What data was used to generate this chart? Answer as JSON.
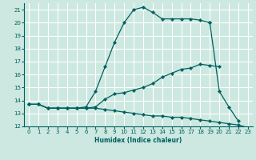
{
  "xlabel": "Humidex (Indice chaleur)",
  "bg_color": "#cce8e0",
  "grid_color": "#ffffff",
  "line_color": "#006060",
  "xlim": [
    -0.5,
    23.5
  ],
  "ylim": [
    12,
    21.5
  ],
  "xticks": [
    0,
    1,
    2,
    3,
    4,
    5,
    6,
    7,
    8,
    9,
    10,
    11,
    12,
    13,
    14,
    15,
    16,
    17,
    18,
    19,
    20,
    21,
    22,
    23
  ],
  "yticks": [
    12,
    13,
    14,
    15,
    16,
    17,
    18,
    19,
    20,
    21
  ],
  "series": [
    {
      "x": [
        0,
        1,
        2,
        3,
        4,
        5,
        6,
        7,
        8,
        9,
        10,
        11,
        12,
        13,
        14,
        15,
        16,
        17,
        18,
        19
      ],
      "y": [
        13.7,
        13.7,
        13.4,
        13.4,
        13.4,
        13.4,
        13.5,
        14.7,
        16.6,
        18.5,
        20.0,
        21.0,
        21.2,
        20.8,
        20.3,
        20.3,
        20.3,
        20.3,
        20.2,
        20.0
      ]
    },
    {
      "x": [
        0,
        1,
        2,
        3,
        4,
        5,
        6,
        7,
        8,
        9,
        10,
        11,
        12,
        13,
        14,
        15,
        16,
        17,
        18,
        19,
        20
      ],
      "y": [
        13.7,
        13.7,
        13.4,
        13.4,
        13.4,
        13.4,
        13.4,
        13.5,
        14.1,
        14.5,
        14.6,
        14.8,
        15.0,
        15.3,
        15.8,
        16.1,
        16.4,
        16.5,
        16.8,
        16.7,
        16.6
      ]
    },
    {
      "x": [
        0,
        1,
        2,
        3,
        4,
        5,
        6,
        7,
        8,
        9,
        10,
        11,
        12,
        13,
        14,
        15,
        16,
        17,
        18,
        19,
        20,
        21,
        22,
        23
      ],
      "y": [
        13.7,
        13.7,
        13.4,
        13.4,
        13.4,
        13.4,
        13.4,
        13.4,
        13.3,
        13.2,
        13.1,
        13.0,
        12.9,
        12.8,
        12.8,
        12.7,
        12.7,
        12.6,
        12.5,
        12.4,
        12.3,
        12.2,
        12.1,
        11.9
      ]
    },
    {
      "x": [
        19,
        20,
        21,
        22
      ],
      "y": [
        20.0,
        14.7,
        13.5,
        12.4
      ]
    }
  ]
}
